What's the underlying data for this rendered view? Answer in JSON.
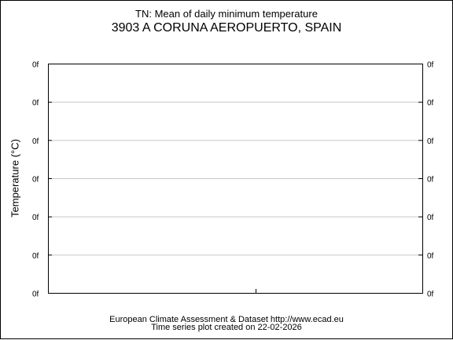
{
  "title": "TN: Mean of daily minimum temperature",
  "station": "3903 A CORUNA AEROPUERTO, SPAIN",
  "footer": {
    "line1": "European Climate Assessment & Dataset  http://www.ecad.eu",
    "line2": "Time series plot created on 22-02-2026"
  },
  "chart_data": {
    "type": "line",
    "title": "TN: Mean of daily minimum temperature",
    "subtitle": "3903 A CORUNA AEROPUERTO, SPAIN",
    "xlabel": "",
    "ylabel": "Temperature (°C)",
    "y_tick_labels": [
      "0f",
      "0f",
      "0f",
      "0f",
      "0f",
      "0f",
      "0f"
    ],
    "y_ticks_mirrored_right": true,
    "grid": "horizontal",
    "legend": "none",
    "series": []
  },
  "colors": {
    "axis": "#000000",
    "grid": "#c8c8c8",
    "background": "#ffffff"
  }
}
